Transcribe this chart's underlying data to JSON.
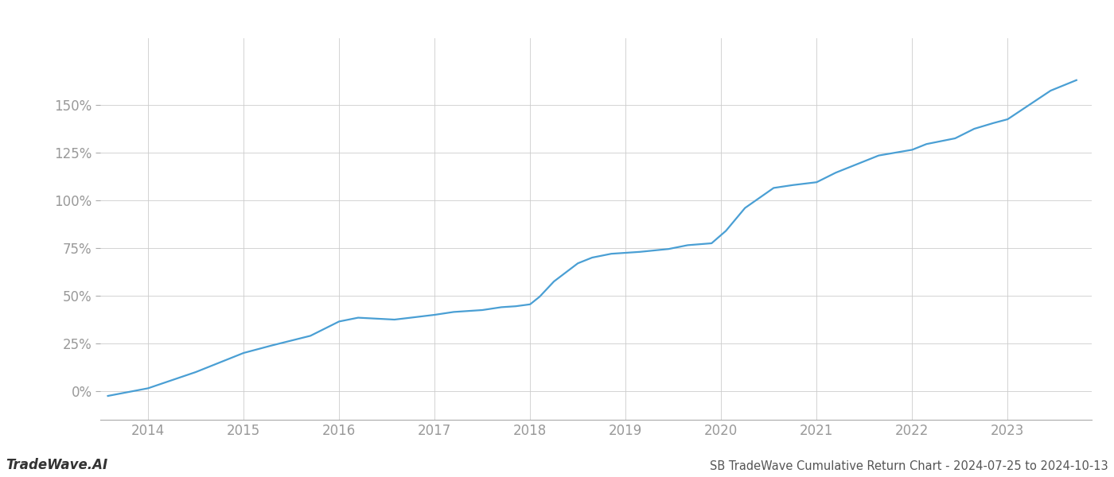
{
  "title": "SB TradeWave Cumulative Return Chart - 2024-07-25 to 2024-10-13",
  "watermark": "TradeWave.AI",
  "line_color": "#4a9fd4",
  "background_color": "#ffffff",
  "grid_color": "#cccccc",
  "text_color": "#999999",
  "footer_text_color": "#333333",
  "x_values": [
    2013.58,
    2014.0,
    2014.5,
    2015.0,
    2015.3,
    2015.7,
    2016.0,
    2016.2,
    2016.58,
    2016.75,
    2017.0,
    2017.2,
    2017.5,
    2017.7,
    2017.85,
    2018.0,
    2018.1,
    2018.25,
    2018.5,
    2018.65,
    2018.85,
    2019.0,
    2019.15,
    2019.45,
    2019.65,
    2019.9,
    2020.05,
    2020.25,
    2020.55,
    2020.75,
    2021.0,
    2021.2,
    2021.45,
    2021.65,
    2022.0,
    2022.15,
    2022.45,
    2022.65,
    2022.85,
    2023.0,
    2023.15,
    2023.45,
    2023.72
  ],
  "y_values": [
    -2.5,
    1.5,
    10.0,
    20.0,
    24.0,
    29.0,
    36.5,
    38.5,
    37.5,
    38.5,
    40.0,
    41.5,
    42.5,
    44.0,
    44.5,
    45.5,
    49.5,
    57.5,
    67.0,
    70.0,
    72.0,
    72.5,
    73.0,
    74.5,
    76.5,
    77.5,
    84.0,
    96.0,
    106.5,
    108.0,
    109.5,
    114.5,
    119.5,
    123.5,
    126.5,
    129.5,
    132.5,
    137.5,
    140.5,
    142.5,
    147.5,
    157.5,
    163.0
  ],
  "xlim": [
    2013.5,
    2023.88
  ],
  "ylim": [
    -15,
    185
  ],
  "yticks": [
    0,
    25,
    50,
    75,
    100,
    125,
    150
  ],
  "xticks": [
    2014,
    2015,
    2016,
    2017,
    2018,
    2019,
    2020,
    2021,
    2022,
    2023
  ],
  "line_width": 1.6,
  "title_fontsize": 10.5,
  "tick_fontsize": 12,
  "watermark_fontsize": 12
}
